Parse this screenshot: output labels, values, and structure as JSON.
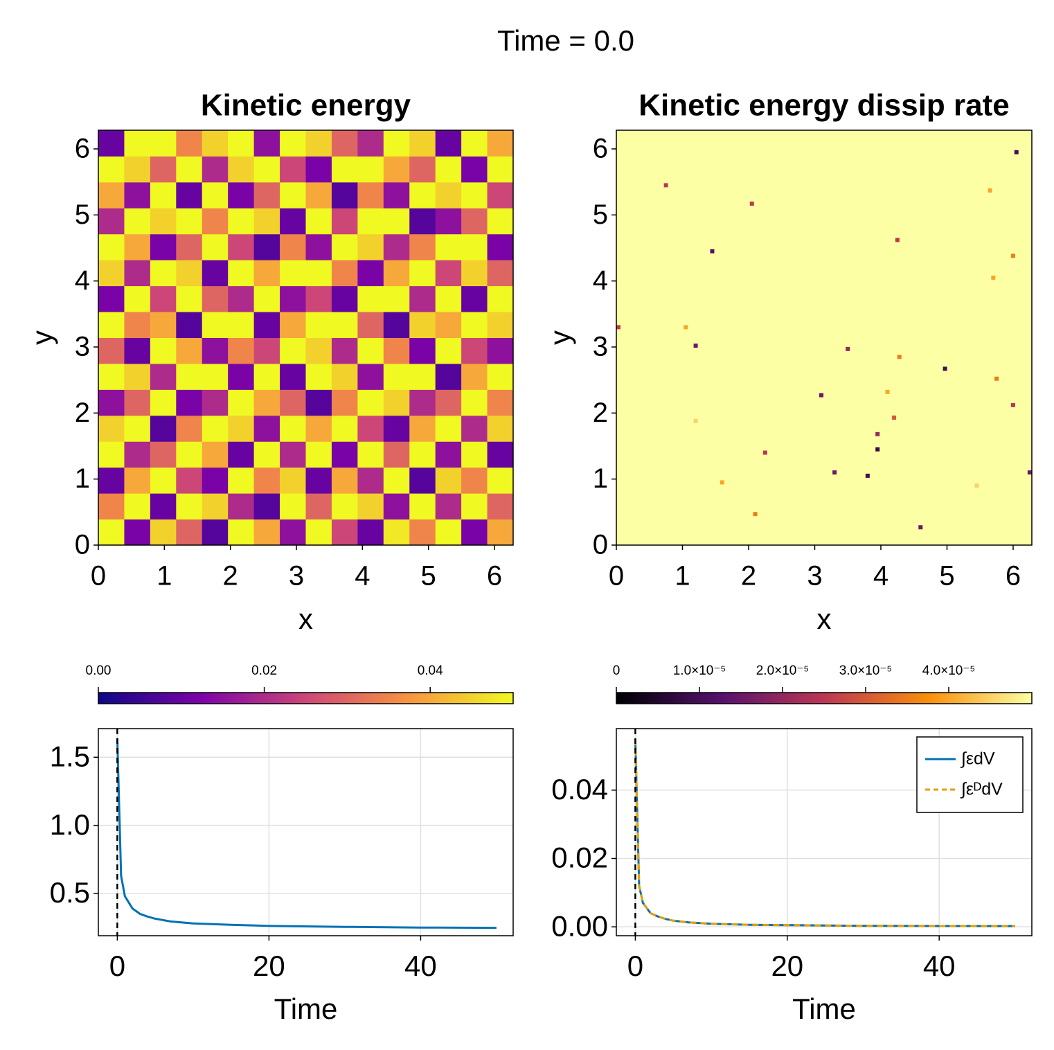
{
  "title": "Time = 0.0",
  "chart_data": [
    {
      "type": "heatmap",
      "title": "Kinetic energy",
      "xlabel": "x",
      "ylabel": "y",
      "xlim": [
        0,
        6.283
      ],
      "ylim": [
        0,
        6.283
      ],
      "xticks": [
        0,
        1,
        2,
        3,
        4,
        5,
        6
      ],
      "yticks": [
        0,
        1,
        2,
        3,
        4,
        5,
        6
      ],
      "colormap": "plasma",
      "clim": [
        0,
        0.05
      ],
      "cticks": [
        {
          "value": 0,
          "label": "0.00"
        },
        {
          "value": 0.02,
          "label": "0.02"
        },
        {
          "value": 0.04,
          "label": "0.04"
        }
      ],
      "z": [
        [
          0.05,
          0.012,
          0.045,
          0.03,
          0.008,
          0.05,
          0.04,
          0.015,
          0.05,
          0.025,
          0.01,
          0.048,
          0.035,
          0.05,
          0.012,
          0.04
        ],
        [
          0.035,
          0.05,
          0.01,
          0.05,
          0.045,
          0.02,
          0.008,
          0.05,
          0.03,
          0.05,
          0.045,
          0.015,
          0.05,
          0.02,
          0.05,
          0.03
        ],
        [
          0.01,
          0.04,
          0.05,
          0.025,
          0.012,
          0.05,
          0.035,
          0.045,
          0.01,
          0.04,
          0.02,
          0.05,
          0.008,
          0.045,
          0.035,
          0.05
        ],
        [
          0.05,
          0.02,
          0.03,
          0.05,
          0.04,
          0.01,
          0.05,
          0.02,
          0.05,
          0.012,
          0.05,
          0.03,
          0.05,
          0.015,
          0.05,
          0.01
        ],
        [
          0.045,
          0.05,
          0.008,
          0.035,
          0.05,
          0.045,
          0.015,
          0.05,
          0.04,
          0.05,
          0.025,
          0.01,
          0.04,
          0.05,
          0.02,
          0.045
        ],
        [
          0.015,
          0.03,
          0.05,
          0.012,
          0.02,
          0.05,
          0.04,
          0.03,
          0.008,
          0.035,
          0.05,
          0.045,
          0.02,
          0.03,
          0.05,
          0.035
        ],
        [
          0.05,
          0.045,
          0.02,
          0.05,
          0.05,
          0.012,
          0.05,
          0.01,
          0.05,
          0.045,
          0.015,
          0.05,
          0.05,
          0.008,
          0.04,
          0.05
        ],
        [
          0.03,
          0.01,
          0.05,
          0.04,
          0.015,
          0.035,
          0.025,
          0.05,
          0.045,
          0.02,
          0.05,
          0.035,
          0.012,
          0.05,
          0.025,
          0.015
        ],
        [
          0.05,
          0.035,
          0.04,
          0.008,
          0.05,
          0.05,
          0.01,
          0.04,
          0.05,
          0.05,
          0.03,
          0.008,
          0.045,
          0.04,
          0.05,
          0.045
        ],
        [
          0.012,
          0.05,
          0.025,
          0.05,
          0.03,
          0.02,
          0.05,
          0.015,
          0.025,
          0.01,
          0.05,
          0.05,
          0.02,
          0.05,
          0.01,
          0.05
        ],
        [
          0.045,
          0.02,
          0.05,
          0.045,
          0.01,
          0.05,
          0.04,
          0.05,
          0.05,
          0.035,
          0.012,
          0.04,
          0.05,
          0.025,
          0.045,
          0.03
        ],
        [
          0.05,
          0.04,
          0.012,
          0.03,
          0.05,
          0.025,
          0.008,
          0.035,
          0.015,
          0.05,
          0.045,
          0.02,
          0.035,
          0.05,
          0.05,
          0.012
        ],
        [
          0.02,
          0.05,
          0.045,
          0.05,
          0.035,
          0.05,
          0.045,
          0.01,
          0.05,
          0.025,
          0.05,
          0.05,
          0.008,
          0.015,
          0.03,
          0.05
        ],
        [
          0.04,
          0.015,
          0.05,
          0.01,
          0.05,
          0.012,
          0.03,
          0.05,
          0.04,
          0.008,
          0.035,
          0.015,
          0.05,
          0.045,
          0.05,
          0.025
        ],
        [
          0.05,
          0.045,
          0.03,
          0.05,
          0.02,
          0.045,
          0.05,
          0.025,
          0.012,
          0.05,
          0.05,
          0.04,
          0.03,
          0.05,
          0.012,
          0.05
        ],
        [
          0.01,
          0.05,
          0.05,
          0.035,
          0.045,
          0.05,
          0.015,
          0.05,
          0.045,
          0.03,
          0.02,
          0.05,
          0.045,
          0.01,
          0.05,
          0.04
        ]
      ]
    },
    {
      "type": "heatmap",
      "title": "Kinetic energy dissip rate",
      "xlabel": "x",
      "ylabel": "y",
      "xlim": [
        0,
        6.283
      ],
      "ylim": [
        0,
        6.283
      ],
      "xticks": [
        0,
        1,
        2,
        3,
        4,
        5,
        6
      ],
      "yticks": [
        0,
        1,
        2,
        3,
        4,
        5,
        6
      ],
      "colormap": "inferno",
      "clim": [
        0,
        5e-05
      ],
      "cticks": [
        0,
        {
          "value": 1e-05,
          "label": "1.0×10⁻⁵"
        },
        {
          "value": 2e-05,
          "label": "2.0×10⁻⁵"
        },
        {
          "value": 3e-05,
          "label": "3.0×10⁻⁵"
        },
        {
          "value": 4e-05,
          "label": "4.0×10⁻⁵"
        }
      ],
      "background": 5e-05,
      "spots": {
        "x": [
          0.75,
          2.05,
          4.25,
          1.45,
          6.0,
          5.7,
          5.65,
          6.05,
          0.0,
          1.05,
          1.2,
          3.5,
          4.28,
          4.97,
          5.75,
          3.1,
          4.1,
          6.0,
          4.2,
          1.2,
          3.95,
          3.95,
          2.25,
          3.3,
          3.8,
          6.25,
          1.6,
          2.1,
          4.6,
          5.45
        ],
        "y": [
          5.45,
          5.17,
          4.62,
          4.45,
          4.38,
          4.05,
          5.37,
          5.95,
          3.3,
          3.3,
          3.02,
          2.97,
          2.85,
          2.67,
          2.52,
          2.27,
          2.32,
          2.12,
          1.93,
          1.88,
          1.68,
          1.45,
          1.4,
          1.1,
          1.05,
          1.1,
          0.95,
          0.47,
          0.27,
          0.9
        ],
        "values": [
          2.5e-05,
          2.5e-05,
          2.5e-05,
          1.2e-05,
          3.5e-05,
          4e-05,
          4e-05,
          1e-05,
          2.5e-05,
          4e-05,
          1.5e-05,
          2e-05,
          3.5e-05,
          1e-05,
          3.5e-05,
          1.5e-05,
          4e-05,
          2.5e-05,
          3e-05,
          4.5e-05,
          2e-05,
          8e-06,
          2.5e-05,
          1.5e-05,
          1e-05,
          1.5e-05,
          4e-05,
          3.5e-05,
          1.5e-05,
          4.5e-05
        ]
      }
    },
    {
      "type": "line",
      "xlabel": "Time",
      "xlim": [
        -2.5,
        52.2
      ],
      "ylim": [
        0.19,
        1.71
      ],
      "xticks": [
        0,
        20,
        40
      ],
      "yticks": [
        0.5,
        {
          "value": 1.0,
          "label": "1.0"
        },
        1.5
      ],
      "grid": true,
      "time_marker": 0,
      "x": [
        0,
        0.5,
        1,
        2,
        3,
        4,
        5,
        7,
        10,
        15,
        20,
        30,
        40,
        50
      ],
      "series": [
        {
          "color": "#0072b2",
          "values": [
            1.64,
            0.63,
            0.48,
            0.39,
            0.35,
            0.33,
            0.315,
            0.295,
            0.28,
            0.27,
            0.262,
            0.255,
            0.25,
            0.248
          ]
        }
      ]
    },
    {
      "type": "line",
      "xlabel": "Time",
      "xlim": [
        -2.5,
        52.2
      ],
      "ylim": [
        -0.0026,
        0.058
      ],
      "xticks": [
        0,
        20,
        40
      ],
      "yticks": [
        {
          "value": 0,
          "label": "0.00"
        },
        {
          "value": 0.02,
          "label": "0.02"
        },
        {
          "value": 0.04,
          "label": "0.04"
        }
      ],
      "grid": true,
      "time_marker": 0,
      "legend": "top-right",
      "x": [
        0,
        0.5,
        1,
        2,
        3,
        4,
        5,
        7,
        10,
        15,
        20,
        30,
        40,
        50
      ],
      "series": [
        {
          "name": "∫εdV",
          "color": "#0072b2",
          "values": [
            0.055,
            0.012,
            0.007,
            0.004,
            0.003,
            0.0023,
            0.0018,
            0.0013,
            0.0009,
            0.0006,
            0.0005,
            0.0003,
            0.00025,
            0.0002
          ]
        },
        {
          "name": "∫εᴰdV",
          "color": "#e69f00",
          "dashed": true,
          "values": [
            0.055,
            0.012,
            0.007,
            0.004,
            0.003,
            0.0023,
            0.0018,
            0.0013,
            0.0009,
            0.0006,
            0.0005,
            0.0003,
            0.00025,
            0.0002
          ]
        }
      ]
    }
  ]
}
